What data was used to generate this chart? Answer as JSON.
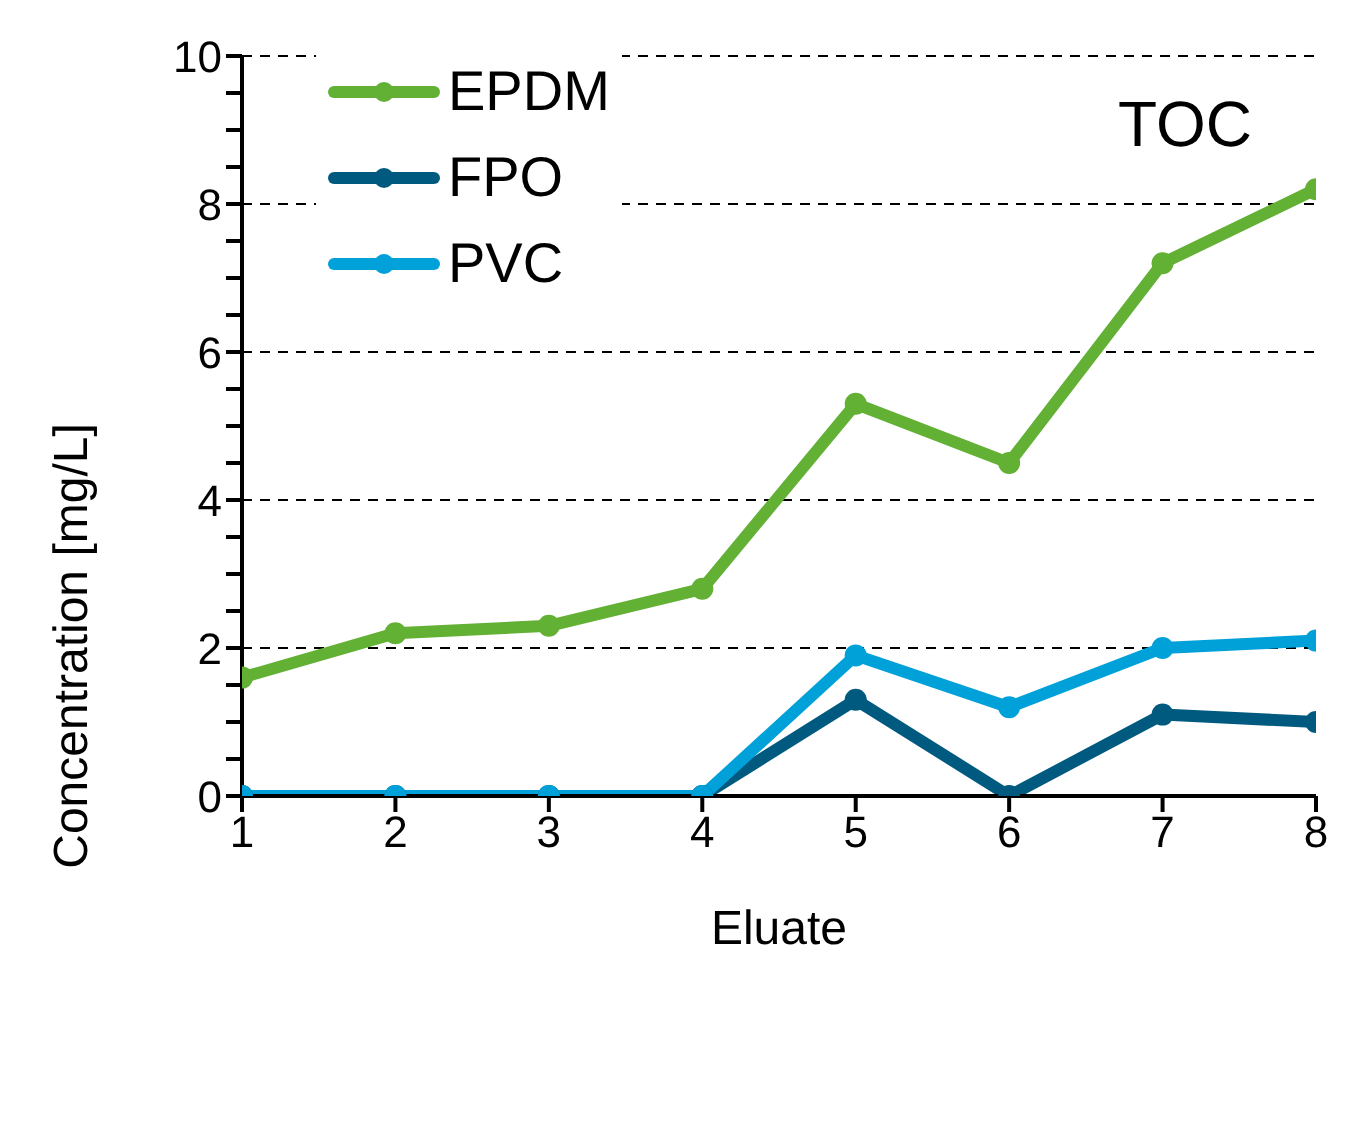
{
  "chart_data": {
    "type": "line",
    "title": "TOC",
    "xlabel": "Eluate",
    "ylabel": "Concentration [mg/L]",
    "x": [
      1,
      2,
      3,
      4,
      5,
      6,
      7,
      8
    ],
    "series": [
      {
        "name": "EPDM",
        "color": "#62b034",
        "values": [
          1.6,
          2.2,
          2.3,
          2.8,
          5.3,
          4.5,
          7.2,
          8.2
        ]
      },
      {
        "name": "FPO",
        "color": "#005a80",
        "values": [
          0,
          0,
          0,
          0,
          1.3,
          0,
          1.1,
          1.0
        ]
      },
      {
        "name": "PVC",
        "color": "#00a0d8",
        "values": [
          0,
          0,
          0,
          0,
          1.9,
          1.2,
          2.0,
          2.1
        ]
      }
    ],
    "xlim": [
      1,
      8
    ],
    "xticks": [
      1,
      2,
      3,
      4,
      5,
      6,
      7,
      8
    ],
    "ylim": [
      0,
      10
    ],
    "yticks": [
      0,
      {
        "value": 0.5,
        "label": null
      },
      2,
      {
        "value": 1,
        "label": null
      },
      {
        "value": 1.5,
        "label": null
      },
      {
        "value": 2.5,
        "label": null
      },
      {
        "value": 3,
        "label": null
      },
      {
        "value": 3.5,
        "label": null
      },
      4,
      {
        "value": 4.5,
        "label": null
      },
      {
        "value": 5,
        "label": null
      },
      {
        "value": 5.5,
        "label": null
      },
      6,
      {
        "value": 6.5,
        "label": null
      },
      {
        "value": 7,
        "label": null
      },
      {
        "value": 7.5,
        "label": null
      },
      8,
      {
        "value": 8.5,
        "label": null
      },
      {
        "value": 9,
        "label": null
      },
      {
        "value": 9.5,
        "label": null
      },
      10
    ],
    "grid": "y",
    "legend": "top left",
    "marker": "circle",
    "line_style": "solid"
  }
}
